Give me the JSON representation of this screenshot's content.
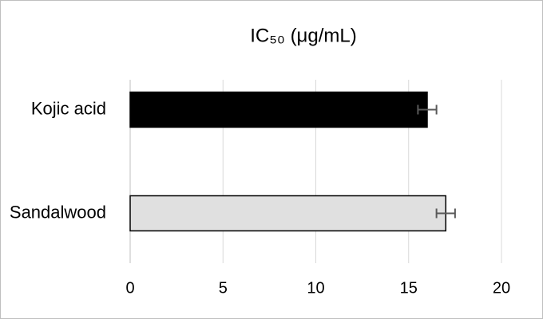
{
  "chart_data": {
    "type": "bar",
    "orientation": "horizontal",
    "title": "IC₅₀ (μg/mL)",
    "categories": [
      "Kojic acid",
      "Sandalwood"
    ],
    "values": [
      16,
      17
    ],
    "errors": [
      0.5,
      0.5
    ],
    "colors": [
      "#000000",
      "#e0e0e0"
    ],
    "xlim": [
      0,
      20
    ],
    "xticks": [
      0,
      5,
      10,
      15,
      20
    ],
    "grid": true
  }
}
